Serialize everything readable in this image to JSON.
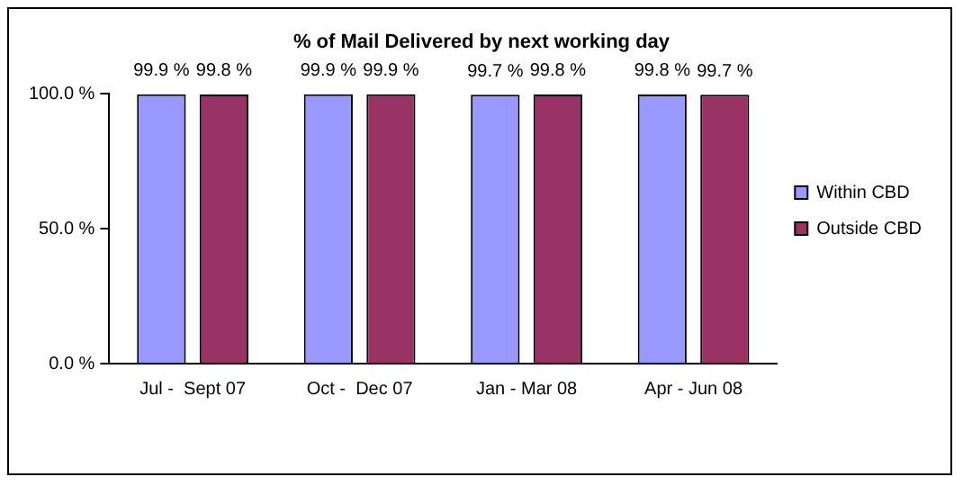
{
  "chart_data": {
    "type": "bar",
    "title": "% of Mail Delivered by next working day",
    "categories": [
      "Jul -  Sept 07",
      "Oct -  Dec 07",
      "Jan - Mar 08",
      "Apr - Jun 08"
    ],
    "series": [
      {
        "name": "Within CBD",
        "color": "#9999ff",
        "values": [
          99.9,
          99.9,
          99.7,
          99.8
        ],
        "value_labels": [
          "99.9 %",
          "99.9 %",
          "99.7 %",
          "99.8 %"
        ]
      },
      {
        "name": "Outside CBD",
        "color": "#993366",
        "values": [
          99.8,
          99.9,
          99.8,
          99.7
        ],
        "value_labels": [
          "99.8 %",
          "99.9 %",
          "99.8 %",
          "99.7 %"
        ]
      }
    ],
    "ylim": [
      0,
      100
    ],
    "yticks": [
      {
        "value": 0,
        "label": "0.0 %"
      },
      {
        "value": 50,
        "label": "50.0 %"
      },
      {
        "value": 100,
        "label": "100.0 %"
      }
    ],
    "grid": false,
    "legend": "right"
  }
}
